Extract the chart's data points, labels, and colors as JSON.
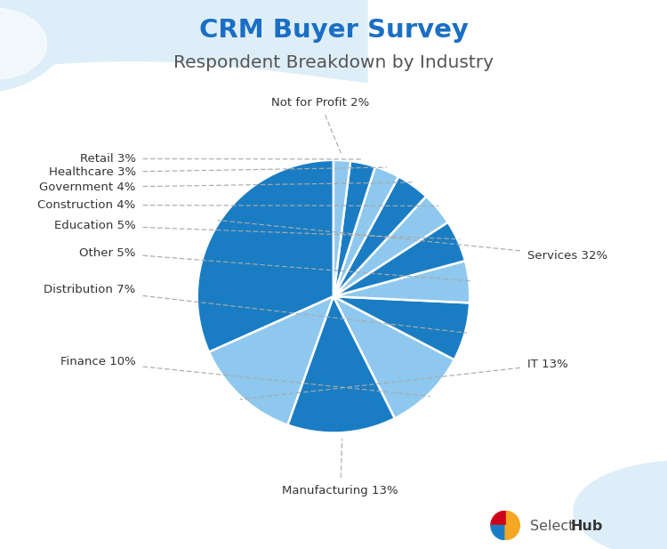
{
  "title1": "CRM Buyer Survey",
  "title2": "Respondent Breakdown by Industry",
  "title1_color": "#1a6fc4",
  "title2_color": "#555555",
  "background_color": "#ffffff",
  "blob_color": "#deeef8",
  "labels": [
    "Services",
    "IT",
    "Manufacturing",
    "Finance",
    "Distribution",
    "Other",
    "Education",
    "Construction",
    "Government",
    "Healthcare",
    "Retail",
    "Not for Profit"
  ],
  "values": [
    32,
    13,
    13,
    10,
    7,
    5,
    5,
    4,
    4,
    3,
    3,
    2
  ],
  "colors": [
    "#1a7dc4",
    "#8ec8ee",
    "#1a7dc4",
    "#8ec8ee",
    "#1a7dc4",
    "#8ec8ee",
    "#1a7dc4",
    "#8ec8ee",
    "#1a7dc4",
    "#8ec8ee",
    "#1a7dc4",
    "#8ec8ee"
  ],
  "startangle": 90,
  "manual_labels": [
    [
      "Services 32%",
      1.42,
      0.3,
      "left",
      "center"
    ],
    [
      "IT 13%",
      1.42,
      -0.5,
      "left",
      "center"
    ],
    [
      "Manufacturing 13%",
      0.05,
      -1.38,
      "center",
      "top"
    ],
    [
      "Finance 10%",
      -1.45,
      -0.48,
      "right",
      "center"
    ],
    [
      "Distribution 7%",
      -1.45,
      0.05,
      "right",
      "center"
    ],
    [
      "Other 5%",
      -1.45,
      0.32,
      "right",
      "center"
    ],
    [
      "Education 5%",
      -1.45,
      0.52,
      "right",
      "center"
    ],
    [
      "Construction 4%",
      -1.45,
      0.67,
      "right",
      "center"
    ],
    [
      "Government 4%",
      -1.45,
      0.8,
      "right",
      "center"
    ],
    [
      "Healthcare 3%",
      -1.45,
      0.91,
      "right",
      "center"
    ],
    [
      "Retail 3%",
      -1.45,
      1.01,
      "right",
      "center"
    ],
    [
      "Not for Profit 2%",
      -0.1,
      1.38,
      "center",
      "bottom"
    ]
  ],
  "selecthub_text_color": "#555555",
  "line_color": "#aaaaaa"
}
